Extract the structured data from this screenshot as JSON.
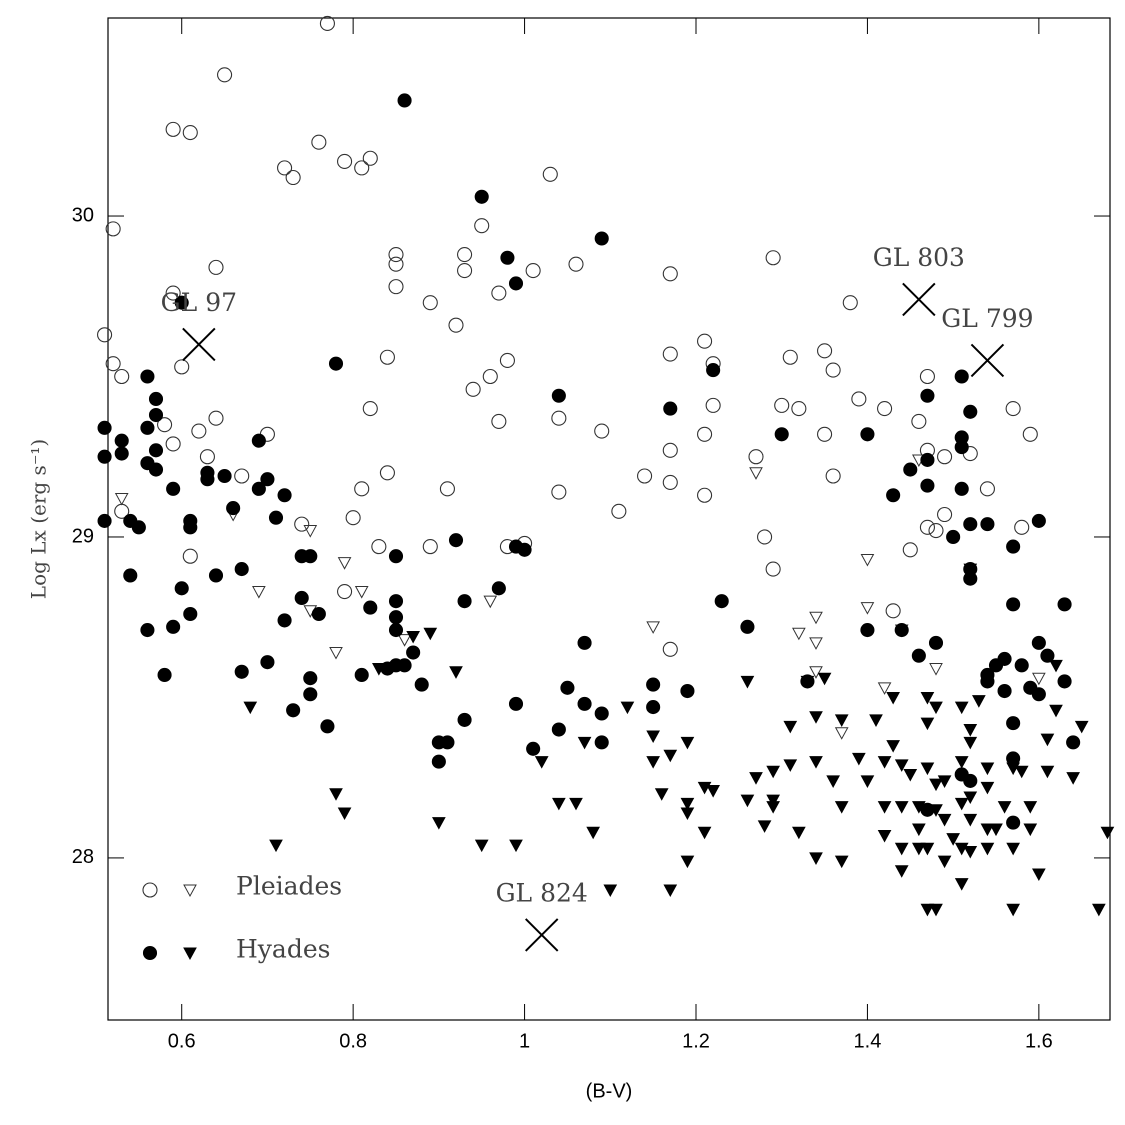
{
  "chart_data": {
    "type": "scatter",
    "xlabel": "(B-V)",
    "ylabel": "Log Lx (erg s⁻¹)",
    "xlim": [
      0.514,
      1.683
    ],
    "ylim": [
      27.495,
      30.617
    ],
    "xticks": [
      0.6,
      0.8,
      1,
      1.2,
      1.4,
      1.6
    ],
    "yticks": [
      28,
      29,
      30
    ],
    "legend": "lower left",
    "series": [
      {
        "name": "Pleiades",
        "color": "#333333",
        "filled": false,
        "detections": {
          "x": [
            0.77,
            0.65,
            0.59,
            0.61,
            0.76,
            0.72,
            0.73,
            0.79,
            0.81,
            0.82,
            1.03,
            0.51,
            0.52,
            0.64,
            0.59,
            0.6,
            0.52,
            0.53,
            0.85,
            0.85,
            0.85,
            0.89,
            0.92,
            0.93,
            0.93,
            0.95,
            0.97,
            0.98,
            1.01,
            1.06,
            0.94,
            0.96,
            0.84,
            0.82,
            0.97,
            1.04,
            1.09,
            1.14,
            1.17,
            1.17,
            1.21,
            1.22,
            1.22,
            1.29,
            1.31,
            1.3,
            1.32,
            1.35,
            1.36,
            1.38,
            1.39,
            1.42,
            1.35,
            1.36,
            1.27,
            1.17,
            1.17,
            1.21,
            1.21,
            1.11,
            1.04,
            0.91,
            0.84,
            0.81,
            0.8,
            0.83,
            0.79,
            0.74,
            0.7,
            0.67,
            0.64,
            0.62,
            0.59,
            0.58,
            0.61,
            0.63,
            0.53,
            1.47,
            1.46,
            1.49,
            1.47,
            1.45,
            1.47,
            1.48,
            1.49,
            1.52,
            1.54,
            1.57,
            1.59,
            1.58,
            1.28,
            1.29,
            1.17,
            1.43,
            0.89,
            0.98,
            1.0
          ],
          "y": [
            30.6,
            30.44,
            30.27,
            30.26,
            30.23,
            30.15,
            30.12,
            30.17,
            30.15,
            30.18,
            30.13,
            29.63,
            29.96,
            29.84,
            29.76,
            29.53,
            29.54,
            29.5,
            29.88,
            29.85,
            29.78,
            29.73,
            29.66,
            29.88,
            29.83,
            29.97,
            29.76,
            29.55,
            29.83,
            29.85,
            29.46,
            29.5,
            29.56,
            29.4,
            29.36,
            29.37,
            29.33,
            29.19,
            29.57,
            29.82,
            29.61,
            29.54,
            29.41,
            29.87,
            29.56,
            29.41,
            29.4,
            29.58,
            29.52,
            29.73,
            29.43,
            29.4,
            29.32,
            29.19,
            29.25,
            29.27,
            29.17,
            29.32,
            29.13,
            29.08,
            29.14,
            29.15,
            29.2,
            29.15,
            29.06,
            28.97,
            28.83,
            29.04,
            29.32,
            29.19,
            29.37,
            29.33,
            29.29,
            29.35,
            28.94,
            29.25,
            29.08,
            29.5,
            29.36,
            29.25,
            29.27,
            28.96,
            29.03,
            29.02,
            29.07,
            29.26,
            29.15,
            29.4,
            29.32,
            29.03,
            29.0,
            28.9,
            28.65,
            28.77,
            28.97,
            28.97,
            28.98
          ]
        },
        "upper_limits": {
          "x": [
            0.53,
            0.66,
            0.75,
            0.69,
            0.79,
            0.81,
            0.75,
            0.78,
            0.86,
            0.96,
            1.15,
            1.27,
            1.32,
            1.34,
            1.34,
            1.34,
            1.37,
            1.4,
            1.4,
            1.42,
            1.48,
            1.46,
            1.6,
            1.44
          ],
          "y": [
            29.12,
            29.07,
            29.02,
            28.83,
            28.92,
            28.83,
            28.77,
            28.64,
            28.68,
            28.8,
            28.72,
            29.2,
            28.7,
            28.75,
            28.67,
            28.58,
            28.39,
            28.93,
            28.78,
            28.53,
            28.59,
            29.24,
            28.56,
            28.71
          ]
        }
      },
      {
        "name": "Hyades",
        "color": "#000000",
        "filled": true,
        "detections": {
          "x": [
            0.86,
            0.6,
            0.95,
            0.98,
            0.99,
            1.09,
            0.78,
            1.04,
            1.17,
            1.22,
            1.3,
            1.4,
            1.47,
            1.51,
            1.52,
            1.47,
            1.51,
            1.51,
            1.45,
            1.47,
            1.51,
            1.43,
            1.6,
            1.5,
            1.52,
            1.54,
            1.52,
            1.57,
            1.52,
            1.57,
            0.51,
            0.51,
            0.53,
            0.53,
            0.56,
            0.56,
            0.57,
            0.57,
            0.57,
            0.56,
            0.57,
            0.59,
            0.55,
            0.54,
            0.51,
            0.54,
            0.56,
            0.59,
            0.58,
            0.6,
            0.61,
            0.61,
            0.61,
            0.63,
            0.63,
            0.65,
            0.66,
            0.64,
            0.67,
            0.67,
            0.7,
            0.7,
            0.69,
            0.69,
            0.71,
            0.72,
            0.72,
            0.73,
            0.74,
            0.74,
            0.75,
            0.75,
            0.75,
            0.76,
            0.77,
            0.81,
            0.82,
            0.84,
            0.85,
            0.85,
            0.85,
            0.85,
            0.85,
            0.86,
            0.87,
            0.88,
            0.9,
            0.9,
            0.91,
            0.92,
            0.93,
            0.93,
            0.97,
            0.99,
            0.99,
            1.0,
            1.01,
            1.04,
            1.05,
            1.07,
            1.07,
            1.09,
            1.09,
            1.15,
            1.15,
            1.19,
            1.23,
            1.26,
            1.33,
            1.4,
            1.44,
            1.46,
            1.48,
            1.56,
            1.54,
            1.54,
            1.55,
            1.58,
            1.6,
            1.61,
            1.63,
            1.6,
            1.63,
            1.64,
            1.56,
            1.57,
            1.59,
            1.57,
            1.51,
            1.47,
            1.57,
            1.52
          ],
          "y": [
            30.36,
            29.73,
            30.06,
            29.87,
            29.79,
            29.93,
            29.54,
            29.44,
            29.4,
            29.52,
            29.32,
            29.32,
            29.44,
            29.5,
            29.39,
            29.24,
            29.31,
            29.28,
            29.21,
            29.16,
            29.15,
            29.13,
            29.05,
            29.0,
            29.04,
            29.04,
            28.9,
            28.97,
            28.87,
            28.79,
            29.34,
            29.25,
            29.26,
            29.3,
            29.34,
            29.5,
            29.43,
            29.38,
            29.27,
            29.23,
            29.21,
            29.15,
            29.03,
            29.05,
            29.05,
            28.88,
            28.71,
            28.72,
            28.57,
            28.84,
            28.76,
            29.05,
            29.03,
            29.2,
            29.18,
            29.19,
            29.09,
            28.88,
            28.9,
            28.58,
            28.61,
            29.18,
            29.3,
            29.15,
            29.06,
            29.13,
            28.74,
            28.46,
            28.94,
            28.81,
            28.94,
            28.56,
            28.51,
            28.76,
            28.41,
            28.57,
            28.78,
            28.59,
            28.94,
            28.8,
            28.75,
            28.71,
            28.6,
            28.6,
            28.64,
            28.54,
            28.36,
            28.3,
            28.36,
            28.99,
            28.8,
            28.43,
            28.84,
            28.48,
            28.97,
            28.96,
            28.34,
            28.4,
            28.53,
            28.67,
            28.48,
            28.36,
            28.45,
            28.54,
            28.47,
            28.52,
            28.8,
            28.72,
            28.55,
            28.71,
            28.71,
            28.63,
            28.67,
            28.62,
            28.57,
            28.55,
            28.6,
            28.6,
            28.67,
            28.63,
            28.79,
            28.51,
            28.55,
            28.36,
            28.52,
            28.42,
            28.53,
            28.31,
            28.26,
            28.15,
            28.11,
            28.24
          ]
        },
        "upper_limits": {
          "x": [
            0.71,
            0.68,
            0.78,
            0.79,
            0.83,
            0.87,
            0.89,
            0.92,
            0.9,
            0.95,
            0.99,
            1.02,
            1.04,
            1.06,
            1.07,
            1.08,
            1.1,
            1.12,
            1.15,
            1.15,
            1.16,
            1.17,
            1.17,
            1.19,
            1.19,
            1.19,
            1.19,
            1.21,
            1.21,
            1.22,
            1.26,
            1.26,
            1.27,
            1.28,
            1.29,
            1.29,
            1.29,
            1.31,
            1.31,
            1.32,
            1.33,
            1.34,
            1.34,
            1.34,
            1.35,
            1.36,
            1.37,
            1.37,
            1.37,
            1.39,
            1.4,
            1.41,
            1.42,
            1.42,
            1.42,
            1.43,
            1.43,
            1.44,
            1.44,
            1.44,
            1.44,
            1.45,
            1.46,
            1.46,
            1.46,
            1.47,
            1.47,
            1.47,
            1.47,
            1.47,
            1.48,
            1.48,
            1.48,
            1.48,
            1.49,
            1.49,
            1.49,
            1.5,
            1.51,
            1.51,
            1.51,
            1.51,
            1.51,
            1.52,
            1.52,
            1.52,
            1.52,
            1.52,
            1.54,
            1.54,
            1.54,
            1.54,
            1.55,
            1.56,
            1.57,
            1.57,
            1.57,
            1.58,
            1.59,
            1.59,
            1.6,
            1.61,
            1.61,
            1.62,
            1.62,
            1.64,
            1.65,
            1.67,
            1.68,
            1.52,
            1.53
          ],
          "y": [
            28.04,
            28.47,
            28.2,
            28.14,
            28.59,
            28.69,
            28.7,
            28.58,
            28.11,
            28.04,
            28.04,
            28.3,
            28.17,
            28.17,
            28.36,
            28.08,
            27.9,
            28.47,
            28.3,
            28.38,
            28.2,
            27.9,
            28.32,
            28.14,
            27.99,
            28.36,
            28.17,
            28.08,
            28.22,
            28.21,
            28.55,
            28.18,
            28.25,
            28.1,
            28.27,
            28.18,
            28.16,
            28.41,
            28.29,
            28.08,
            28.55,
            28.44,
            28.3,
            28.0,
            28.56,
            28.24,
            28.43,
            28.16,
            27.99,
            28.31,
            28.24,
            28.43,
            28.3,
            28.16,
            28.07,
            28.5,
            28.35,
            28.29,
            28.16,
            28.03,
            27.96,
            28.26,
            28.16,
            28.03,
            28.09,
            28.5,
            28.42,
            28.28,
            28.03,
            27.84,
            28.47,
            28.23,
            28.15,
            27.84,
            28.24,
            28.12,
            27.99,
            28.06,
            28.47,
            28.3,
            28.17,
            28.03,
            27.92,
            28.36,
            28.12,
            28.02,
            28.4,
            28.19,
            28.28,
            28.09,
            28.22,
            28.03,
            28.09,
            28.16,
            28.28,
            28.03,
            27.84,
            28.27,
            28.16,
            28.09,
            27.95,
            28.37,
            28.27,
            28.6,
            28.46,
            28.25,
            28.41,
            27.84,
            28.08,
            28.9,
            28.49
          ]
        }
      }
    ],
    "annotations": [
      {
        "text": "GL 97",
        "x": 0.62,
        "y": 29.6
      },
      {
        "text": "GL 803",
        "x": 1.46,
        "y": 29.74
      },
      {
        "text": "GL 799",
        "x": 1.54,
        "y": 29.55
      },
      {
        "text": "GL 824",
        "x": 1.02,
        "y": 27.76
      }
    ]
  }
}
